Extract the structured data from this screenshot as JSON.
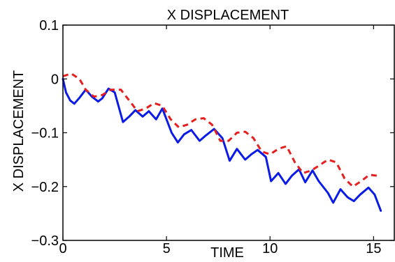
{
  "chart_data": {
    "type": "line",
    "title": "X DISPLACEMENT",
    "xlabel": "TIME",
    "ylabel": "X DISPLACEMENT",
    "xlim": [
      0,
      16
    ],
    "ylim": [
      -0.3,
      0.1
    ],
    "xticks": [
      0,
      5,
      10,
      15
    ],
    "yticks": [
      -0.3,
      -0.2,
      -0.1,
      0,
      0.1
    ],
    "ytick_labels": [
      "−0.3",
      "−0.2",
      "−0.1",
      "0",
      "0.1"
    ],
    "xtick_labels": [
      "0",
      "5",
      "10",
      "15"
    ],
    "grid": false,
    "legend": null,
    "series": [
      {
        "style": "solid",
        "color": "#0a1be6",
        "x": [
          0,
          0.15,
          0.35,
          0.55,
          0.8,
          1.1,
          1.4,
          1.7,
          1.9,
          2.2,
          2.5,
          2.9,
          3.2,
          3.5,
          3.85,
          4.15,
          4.5,
          4.8,
          5.25,
          5.55,
          5.85,
          6.2,
          6.6,
          6.9,
          7.3,
          7.7,
          8.05,
          8.4,
          8.8,
          9.1,
          9.4,
          9.8,
          10.05,
          10.4,
          10.75,
          11.05,
          11.4,
          11.7,
          12.05,
          12.35,
          12.8,
          13.05,
          13.4,
          13.75,
          14.05,
          14.35,
          14.75,
          15.05,
          15.35
        ],
        "y": [
          0,
          -0.025,
          -0.04,
          -0.046,
          -0.035,
          -0.02,
          -0.033,
          -0.042,
          -0.036,
          -0.018,
          -0.025,
          -0.08,
          -0.07,
          -0.058,
          -0.07,
          -0.06,
          -0.075,
          -0.055,
          -0.1,
          -0.118,
          -0.103,
          -0.095,
          -0.115,
          -0.105,
          -0.093,
          -0.11,
          -0.152,
          -0.13,
          -0.15,
          -0.14,
          -0.132,
          -0.145,
          -0.19,
          -0.175,
          -0.195,
          -0.18,
          -0.168,
          -0.192,
          -0.17,
          -0.19,
          -0.212,
          -0.23,
          -0.205,
          -0.22,
          -0.227,
          -0.215,
          -0.202,
          -0.215,
          -0.245
        ]
      },
      {
        "style": "dashed",
        "color": "#e61e1e",
        "x": [
          0,
          0.4,
          0.8,
          1.1,
          1.5,
          1.9,
          2.3,
          2.8,
          3.2,
          3.6,
          4.0,
          4.4,
          4.8,
          5.2,
          5.6,
          6.0,
          6.4,
          6.8,
          7.2,
          7.6,
          8.0,
          8.4,
          8.8,
          9.2,
          9.6,
          10.0,
          10.4,
          10.8,
          11.2,
          11.6,
          12.0,
          12.4,
          12.8,
          13.2,
          13.6,
          14.0,
          14.4,
          14.8,
          15.2
        ],
        "y": [
          0.005,
          0.01,
          0.0,
          -0.02,
          -0.033,
          -0.03,
          -0.02,
          -0.02,
          -0.04,
          -0.06,
          -0.055,
          -0.045,
          -0.05,
          -0.075,
          -0.09,
          -0.085,
          -0.075,
          -0.073,
          -0.085,
          -0.115,
          -0.115,
          -0.1,
          -0.098,
          -0.11,
          -0.135,
          -0.14,
          -0.13,
          -0.125,
          -0.155,
          -0.175,
          -0.17,
          -0.16,
          -0.15,
          -0.155,
          -0.185,
          -0.2,
          -0.19,
          -0.178,
          -0.18
        ]
      }
    ]
  }
}
